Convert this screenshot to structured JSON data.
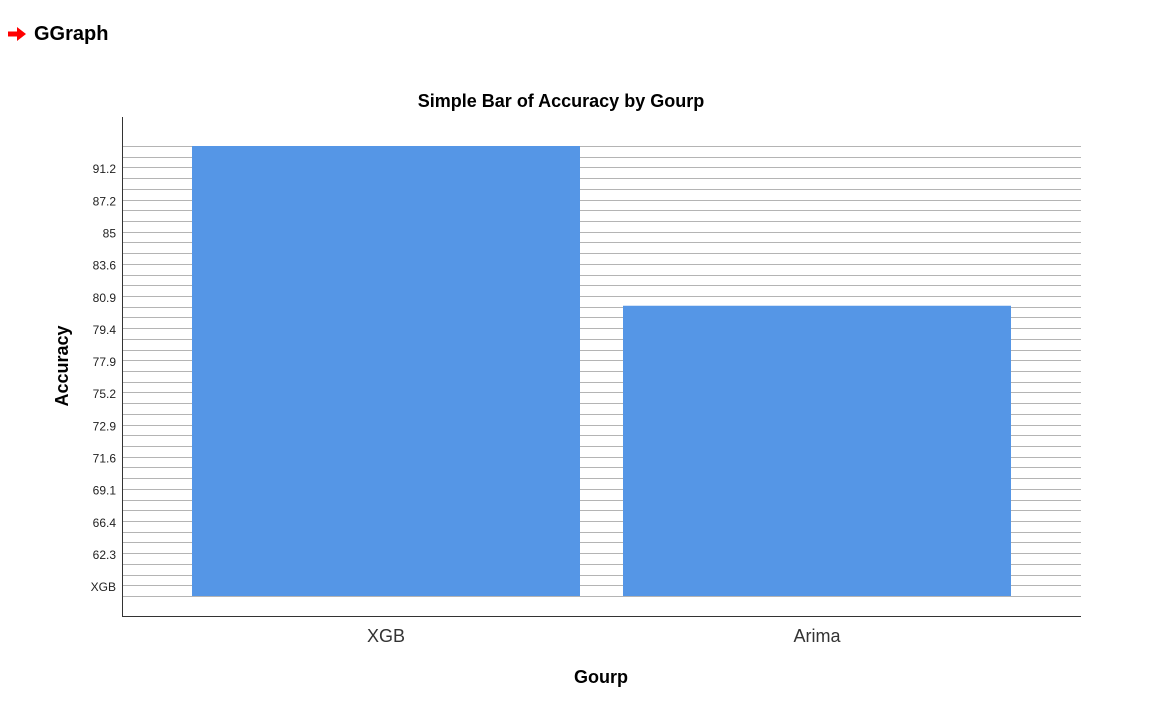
{
  "header": {
    "title": "GGraph",
    "icon": "arrow-right-icon",
    "icon_color": "#ff0000"
  },
  "chart_data": {
    "type": "bar",
    "title": "Simple Bar of Accuracy by Gourp",
    "xlabel": "Gourp",
    "ylabel": "Accuracy",
    "categories": [
      "XGB",
      "Arima"
    ],
    "values": [
      1.0,
      0.645
    ],
    "value_units": "fraction of y-axis maximum",
    "y_ticks": [
      "XGB",
      "62.3",
      "66.4",
      "69.1",
      "71.6",
      "72.9",
      "75.2",
      "77.9",
      "79.4",
      "80.9",
      "83.6",
      "85",
      "87.2",
      "91.2"
    ],
    "bar_color": "#5596e6",
    "grid": true,
    "grid_color": "#b4b4b4",
    "gridline_count": 43
  }
}
